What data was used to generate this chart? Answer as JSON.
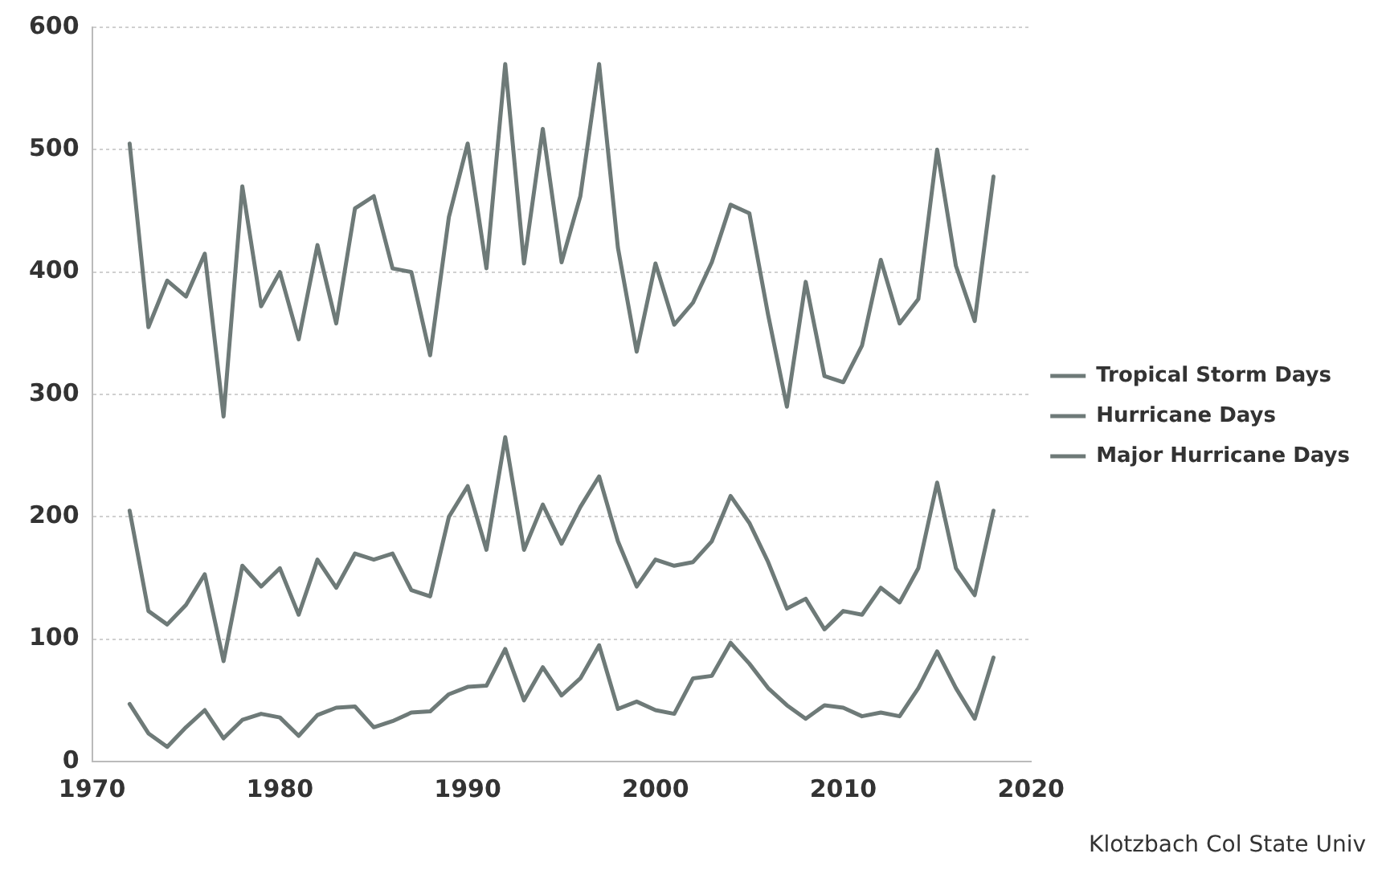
{
  "chart_data": {
    "type": "line",
    "x": [
      1972,
      1973,
      1974,
      1975,
      1976,
      1977,
      1978,
      1979,
      1980,
      1981,
      1982,
      1983,
      1984,
      1985,
      1986,
      1987,
      1988,
      1989,
      1990,
      1991,
      1992,
      1993,
      1994,
      1995,
      1996,
      1997,
      1998,
      1999,
      2000,
      2001,
      2002,
      2003,
      2004,
      2005,
      2006,
      2007,
      2008,
      2009,
      2010,
      2011,
      2012,
      2013,
      2014,
      2015,
      2016,
      2017,
      2018
    ],
    "series": [
      {
        "name": "Tropical Storm Days",
        "color": "#6e7a78",
        "values": [
          505,
          355,
          393,
          380,
          415,
          282,
          470,
          372,
          400,
          345,
          422,
          358,
          452,
          462,
          403,
          400,
          332,
          445,
          505,
          403,
          570,
          407,
          517,
          408,
          462,
          570,
          420,
          335,
          407,
          357,
          375,
          408,
          455,
          448,
          365,
          290,
          392,
          315,
          310,
          340,
          410,
          358,
          378,
          500,
          405,
          360,
          478
        ]
      },
      {
        "name": "Hurricane Days",
        "color": "#6e7a78",
        "values": [
          205,
          123,
          112,
          128,
          153,
          82,
          160,
          143,
          158,
          120,
          165,
          142,
          170,
          165,
          170,
          140,
          135,
          200,
          225,
          173,
          265,
          173,
          210,
          178,
          208,
          233,
          180,
          143,
          165,
          160,
          163,
          180,
          217,
          195,
          163,
          125,
          133,
          108,
          123,
          120,
          142,
          130,
          158,
          228,
          158,
          136,
          205
        ]
      },
      {
        "name": "Major Hurricane Days",
        "color": "#6e7a78",
        "values": [
          47,
          23,
          12,
          28,
          42,
          19,
          34,
          39,
          36,
          21,
          38,
          44,
          45,
          28,
          33,
          40,
          41,
          55,
          61,
          62,
          92,
          50,
          77,
          54,
          68,
          95,
          43,
          49,
          42,
          39,
          68,
          70,
          97,
          80,
          60,
          46,
          35,
          46,
          44,
          37,
          40,
          37,
          60,
          90,
          60,
          35,
          85
        ]
      }
    ],
    "xlim": [
      1970,
      2020
    ],
    "xticks": [
      1970,
      1980,
      1990,
      2000,
      2010,
      2020
    ],
    "ylim": [
      0,
      600
    ],
    "yticks": [
      0,
      100,
      200,
      300,
      400,
      500,
      600
    ],
    "grid": "y",
    "legend": "right",
    "marker": "none",
    "line_style": "solid",
    "annotations": [
      "Klotzbach Col State Univ"
    ]
  }
}
